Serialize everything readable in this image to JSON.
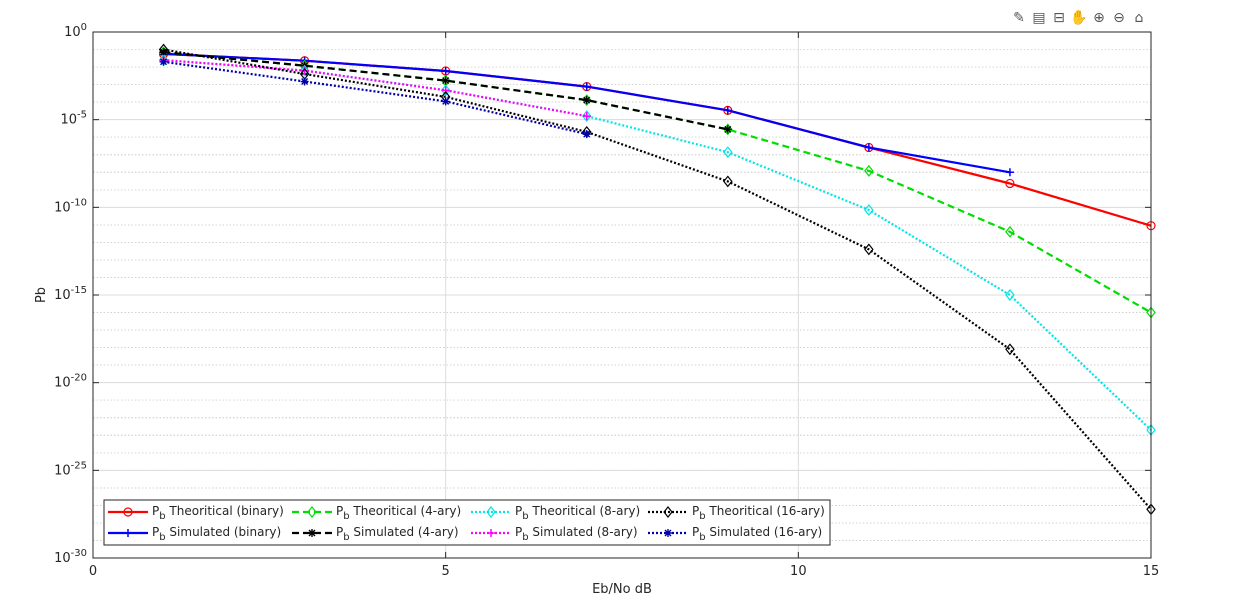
{
  "toolbar": [
    {
      "name": "edit-plot-icon",
      "glyph": "✎"
    },
    {
      "name": "insert-legend-icon",
      "glyph": "▤"
    },
    {
      "name": "data-tips-icon",
      "glyph": "⊟"
    },
    {
      "name": "pan-icon",
      "glyph": "✋"
    },
    {
      "name": "zoom-in-icon",
      "glyph": "⊕"
    },
    {
      "name": "zoom-out-icon",
      "glyph": "⊖"
    },
    {
      "name": "home-icon",
      "glyph": "⌂"
    }
  ],
  "chart_data": {
    "type": "line",
    "title": "",
    "xlabel": "Eb/No dB",
    "ylabel": "Pb",
    "xlim": [
      0,
      15
    ],
    "ylim": [
      1e-30,
      1
    ],
    "yscale": "log",
    "grid": true,
    "minor_grid": true,
    "x_ticks": [
      0,
      5,
      10,
      15
    ],
    "y_tick_exponents": [
      0,
      -5,
      -10,
      -15,
      -20,
      -25,
      -30
    ],
    "legend_position": "bottom-left",
    "legend_columns": 4,
    "series": [
      {
        "name": "Theoritical (binary)",
        "color": "#ff0000",
        "dash": "solid",
        "marker": "circle",
        "x": [
          1,
          3,
          5,
          7,
          9,
          11,
          13,
          15
        ],
        "y": [
          0.056,
          0.023,
          0.006,
          0.00077,
          3.4e-05,
          2.6e-07,
          2.3e-09,
          9e-12
        ]
      },
      {
        "name": "Simulated (binary)",
        "color": "#0000ff",
        "dash": "solid",
        "marker": "plus",
        "x": [
          1,
          3,
          5,
          7,
          9,
          11,
          13
        ],
        "y": [
          0.056,
          0.023,
          0.006,
          0.00077,
          3.4e-05,
          2.6e-07,
          1e-08
        ]
      },
      {
        "name": "Theoritical (4-ary)",
        "color": "#00dd00",
        "dash": "dashed",
        "marker": "diamond",
        "x": [
          1,
          3,
          5,
          7,
          9,
          11,
          13,
          15
        ],
        "y": [
          0.07,
          0.012,
          0.0017,
          0.00013,
          2.8e-06,
          1.2e-08,
          4e-12,
          1e-16
        ]
      },
      {
        "name": "Simulated (4-ary)",
        "color": "#000000",
        "dash": "dashed",
        "marker": "asterisk",
        "x": [
          1,
          3,
          5,
          7,
          9
        ],
        "y": [
          0.07,
          0.012,
          0.0017,
          0.00013,
          2.8e-06
        ]
      },
      {
        "name": "Theoritical (8-ary)",
        "color": "#00e5e5",
        "dash": "dotted",
        "marker": "diamond",
        "x": [
          1,
          3,
          5,
          7,
          9,
          11,
          13,
          15
        ],
        "y": [
          0.025,
          0.0063,
          0.00047,
          1.6e-05,
          1.4e-07,
          7e-11,
          1e-15,
          2e-23
        ]
      },
      {
        "name": "Simulated (8-ary)",
        "color": "#ff00ff",
        "dash": "dotted",
        "marker": "plus",
        "x": [
          1,
          3,
          5,
          7
        ],
        "y": [
          0.025,
          0.0063,
          0.00047,
          1.6e-05
        ]
      },
      {
        "name": "Theoritical (16-ary)",
        "color": "#000000",
        "dash": "dotted",
        "marker": "diamond",
        "x": [
          1,
          3,
          5,
          7,
          9,
          11,
          13,
          15
        ],
        "y": [
          0.1,
          0.004,
          0.0002,
          2e-06,
          3e-09,
          4e-13,
          8e-19,
          6e-28
        ]
      },
      {
        "name": "Simulated (16-ary)",
        "color": "#0000aa",
        "dash": "dotted",
        "marker": "asterisk",
        "x": [
          1,
          3,
          5,
          7
        ],
        "y": [
          0.02,
          0.0015,
          0.00011,
          1.5e-06
        ]
      }
    ]
  }
}
